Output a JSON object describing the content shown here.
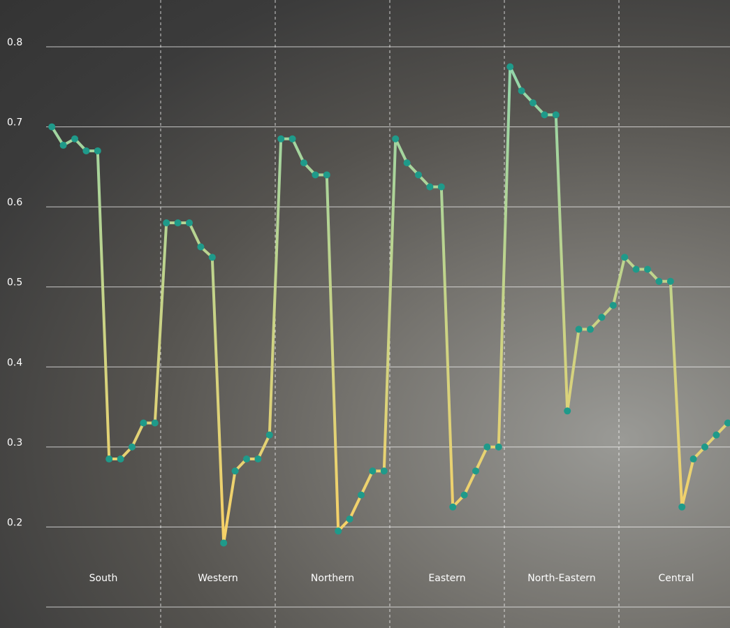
{
  "chart_data": {
    "type": "line",
    "groups": [
      {
        "name": "South",
        "values": [
          0.7,
          0.677,
          0.685,
          0.67,
          0.67,
          0.285,
          0.285,
          0.3,
          0.33,
          0.33
        ]
      },
      {
        "name": "Western",
        "values": [
          0.58,
          0.58,
          0.58,
          0.55,
          0.537,
          0.18,
          0.27,
          0.285,
          0.285,
          0.315
        ]
      },
      {
        "name": "Northern",
        "values": [
          0.685,
          0.685,
          0.655,
          0.64,
          0.64,
          0.195,
          0.21,
          0.24,
          0.27,
          0.27
        ]
      },
      {
        "name": "Eastern",
        "values": [
          0.685,
          0.655,
          0.64,
          0.625,
          0.625,
          0.225,
          0.24,
          0.27,
          0.3,
          0.3
        ]
      },
      {
        "name": "North-Eastern",
        "values": [
          0.775,
          0.745,
          0.73,
          0.715,
          0.715,
          0.345,
          0.447,
          0.447,
          0.462,
          0.477
        ]
      },
      {
        "name": "Central",
        "values": [
          0.537,
          0.522,
          0.522,
          0.507,
          0.507,
          0.225,
          0.285,
          0.3,
          0.315,
          0.33
        ]
      }
    ],
    "ylim": [
      0.1,
      0.8
    ],
    "yticks": [
      0.2,
      0.3,
      0.4,
      0.5,
      0.6,
      0.7,
      0.8
    ],
    "grid": true,
    "line_gradient": [
      "#8ed6ad",
      "#f6d168"
    ],
    "marker_color": "#1f9a8a"
  }
}
